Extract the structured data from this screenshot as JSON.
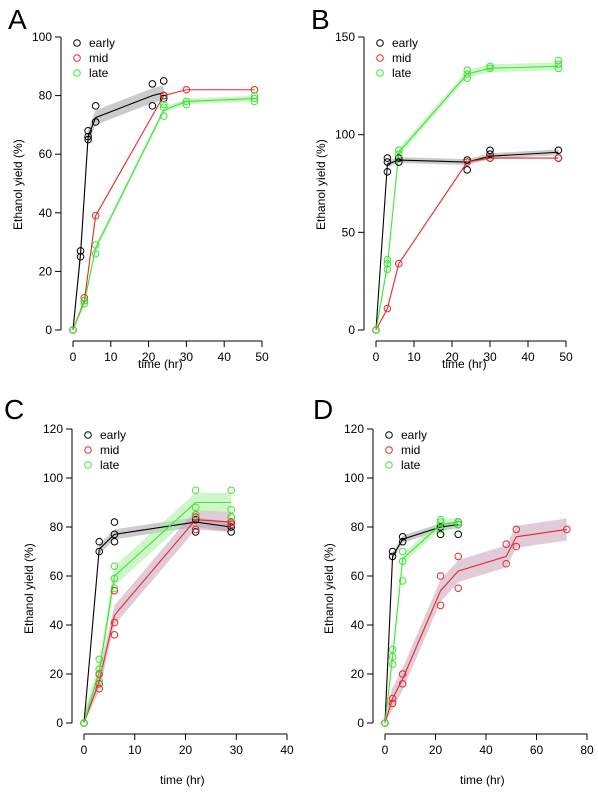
{
  "chart_data": [
    {
      "panel": "A",
      "type": "line",
      "xlabel": "time (hr)",
      "ylabel": "Ethanol yield (%)",
      "xlim": [
        0,
        50
      ],
      "ylim": [
        0,
        100
      ],
      "xticks": [
        0,
        10,
        20,
        30,
        40,
        50
      ],
      "yticks": [
        0,
        20,
        40,
        60,
        80,
        100
      ],
      "legend": {
        "position": "top-left",
        "entries": [
          "early",
          "mid",
          "late"
        ]
      },
      "series": [
        {
          "name": "early",
          "color": "#000000",
          "band_color": "#a0a0a0",
          "line": [
            [
              0,
              0
            ],
            [
              2,
              26
            ],
            [
              4,
              66
            ],
            [
              6,
              72.5
            ],
            [
              21,
              80
            ],
            [
              24,
              81
            ]
          ],
          "band": 2.5,
          "points": [
            [
              0,
              0
            ],
            [
              2,
              25
            ],
            [
              2,
              27
            ],
            [
              4,
              65
            ],
            [
              4,
              66
            ],
            [
              4,
              68
            ],
            [
              6,
              71
            ],
            [
              6,
              76.5
            ],
            [
              21,
              76.5
            ],
            [
              21,
              84
            ],
            [
              24,
              79
            ],
            [
              24,
              80
            ],
            [
              24,
              85
            ]
          ]
        },
        {
          "name": "mid",
          "color": "#e8272b",
          "band_color": "#e8a0a8",
          "line": [
            [
              0,
              0
            ],
            [
              3,
              10
            ],
            [
              6,
              39
            ],
            [
              24,
              80
            ],
            [
              30,
              82
            ],
            [
              48,
              82
            ]
          ],
          "band": 0,
          "points": [
            [
              0,
              0
            ],
            [
              3,
              10
            ],
            [
              3,
              11
            ],
            [
              6,
              39
            ],
            [
              24,
              80
            ],
            [
              30,
              82
            ],
            [
              48,
              82
            ]
          ]
        },
        {
          "name": "late",
          "color": "#3ee633",
          "band_color": "#a8eea0",
          "line": [
            [
              0,
              0
            ],
            [
              3,
              9.5
            ],
            [
              6,
              28
            ],
            [
              24,
              75
            ],
            [
              30,
              78
            ],
            [
              48,
              79
            ]
          ],
          "band": 1,
          "points": [
            [
              0,
              0
            ],
            [
              3,
              9
            ],
            [
              3,
              10
            ],
            [
              6,
              26
            ],
            [
              6,
              29
            ],
            [
              24,
              73
            ],
            [
              24,
              76
            ],
            [
              24,
              77
            ],
            [
              30,
              77
            ],
            [
              30,
              78
            ],
            [
              48,
              78
            ],
            [
              48,
              79
            ],
            [
              48,
              80
            ]
          ]
        }
      ]
    },
    {
      "panel": "B",
      "type": "line",
      "xlabel": "time (hr)",
      "ylabel": "Ethanol yield (%)",
      "xlim": [
        0,
        50
      ],
      "ylim": [
        0,
        150
      ],
      "xticks": [
        0,
        10,
        20,
        30,
        40,
        50
      ],
      "yticks": [
        0,
        50,
        100,
        150
      ],
      "legend": {
        "position": "top-left",
        "entries": [
          "early",
          "mid",
          "late"
        ]
      },
      "series": [
        {
          "name": "early",
          "color": "#000000",
          "band_color": "#a0a0a0",
          "line": [
            [
              0,
              0
            ],
            [
              3,
              85
            ],
            [
              6,
              87
            ],
            [
              24,
              86
            ],
            [
              30,
              89
            ],
            [
              48,
              91
            ]
          ],
          "band": 1.5,
          "points": [
            [
              0,
              0
            ],
            [
              3,
              81
            ],
            [
              3,
              86
            ],
            [
              3,
              88
            ],
            [
              6,
              86
            ],
            [
              6,
              88
            ],
            [
              24,
              82
            ],
            [
              24,
              87
            ],
            [
              30,
              88
            ],
            [
              30,
              90
            ],
            [
              30,
              92
            ],
            [
              48,
              92
            ],
            [
              48,
              88
            ]
          ]
        },
        {
          "name": "mid",
          "color": "#e8272b",
          "band_color": "#e8a0a8",
          "line": [
            [
              0,
              0
            ],
            [
              3,
              11
            ],
            [
              6,
              34
            ],
            [
              24,
              86
            ],
            [
              30,
              88
            ],
            [
              48,
              88
            ]
          ],
          "band": 0,
          "points": [
            [
              0,
              0
            ],
            [
              3,
              11
            ],
            [
              6,
              34
            ],
            [
              24,
              86
            ],
            [
              30,
              88
            ],
            [
              48,
              88
            ]
          ]
        },
        {
          "name": "late",
          "color": "#3ee633",
          "band_color": "#a8eea0",
          "line": [
            [
              0,
              0
            ],
            [
              3,
              33
            ],
            [
              6,
              91
            ],
            [
              24,
              131
            ],
            [
              30,
              134
            ],
            [
              48,
              135
            ]
          ],
          "band": 2,
          "points": [
            [
              0,
              0
            ],
            [
              3,
              31
            ],
            [
              3,
              34
            ],
            [
              3,
              36
            ],
            [
              6,
              90
            ],
            [
              6,
              92
            ],
            [
              24,
              129
            ],
            [
              24,
              131
            ],
            [
              24,
              133
            ],
            [
              30,
              134
            ],
            [
              30,
              135
            ],
            [
              48,
              134
            ],
            [
              48,
              136
            ],
            [
              48,
              138
            ]
          ]
        }
      ]
    },
    {
      "panel": "C",
      "type": "line",
      "xlabel": "time (hr)",
      "ylabel": "Ethanol yield (%)",
      "xlim": [
        0,
        40
      ],
      "ylim": [
        0,
        120
      ],
      "xticks": [
        0,
        10,
        20,
        30,
        40
      ],
      "yticks": [
        0,
        20,
        40,
        60,
        80,
        100,
        120
      ],
      "legend": {
        "position": "top-left",
        "entries": [
          "early",
          "mid",
          "late"
        ]
      },
      "series": [
        {
          "name": "early",
          "color": "#000000",
          "band_color": "#a0a0a0",
          "line": [
            [
              0,
              0
            ],
            [
              3,
              71
            ],
            [
              6,
              77
            ],
            [
              22,
              82
            ],
            [
              29,
              80
            ]
          ],
          "band": 2,
          "points": [
            [
              0,
              0
            ],
            [
              3,
              70
            ],
            [
              3,
              74
            ],
            [
              6,
              74
            ],
            [
              6,
              77
            ],
            [
              6,
              82
            ],
            [
              22,
              78
            ],
            [
              22,
              83
            ],
            [
              29,
              78
            ],
            [
              29,
              80
            ],
            [
              29,
              82
            ]
          ]
        },
        {
          "name": "mid",
          "color": "#e8272b",
          "band_color": "#c8a0b8",
          "line": [
            [
              0,
              0
            ],
            [
              3,
              17
            ],
            [
              6,
              44
            ],
            [
              22,
              83
            ],
            [
              29,
              82
            ]
          ],
          "band": 4,
          "points": [
            [
              0,
              0
            ],
            [
              3,
              14
            ],
            [
              3,
              16
            ],
            [
              3,
              20
            ],
            [
              6,
              36
            ],
            [
              6,
              41
            ],
            [
              6,
              54
            ],
            [
              22,
              79
            ],
            [
              22,
              84
            ],
            [
              22,
              85
            ],
            [
              29,
              81
            ],
            [
              29,
              82
            ],
            [
              29,
              84
            ]
          ]
        },
        {
          "name": "late",
          "color": "#3ee633",
          "band_color": "#a8eea0",
          "line": [
            [
              0,
              0
            ],
            [
              3,
              21
            ],
            [
              6,
              60
            ],
            [
              22,
              90
            ],
            [
              29,
              90
            ]
          ],
          "band": 4,
          "points": [
            [
              0,
              0
            ],
            [
              3,
              17
            ],
            [
              3,
              22
            ],
            [
              3,
              26
            ],
            [
              6,
              55
            ],
            [
              6,
              59
            ],
            [
              6,
              64
            ],
            [
              22,
              85
            ],
            [
              22,
              88
            ],
            [
              22,
              95
            ],
            [
              29,
              84
            ],
            [
              29,
              87
            ],
            [
              29,
              95
            ]
          ]
        }
      ]
    },
    {
      "panel": "D",
      "type": "line",
      "xlabel": "time (hr)",
      "ylabel": "Ethanol yield (%)",
      "xlim": [
        0,
        80
      ],
      "ylim": [
        0,
        120
      ],
      "xticks": [
        0,
        20,
        40,
        60,
        80
      ],
      "yticks": [
        0,
        20,
        40,
        60,
        80,
        100,
        120
      ],
      "legend": {
        "position": "top-left",
        "entries": [
          "early",
          "mid",
          "late"
        ]
      },
      "series": [
        {
          "name": "early",
          "color": "#000000",
          "band_color": "#a0a0a0",
          "line": [
            [
              0,
              0
            ],
            [
              3,
              68
            ],
            [
              7,
              75
            ],
            [
              22,
              80
            ],
            [
              29,
              81
            ]
          ],
          "band": 1.5,
          "points": [
            [
              0,
              0
            ],
            [
              3,
              68
            ],
            [
              3,
              70
            ],
            [
              7,
              74
            ],
            [
              7,
              76
            ],
            [
              22,
              77
            ],
            [
              22,
              80
            ],
            [
              29,
              77
            ],
            [
              29,
              81
            ],
            [
              29,
              82
            ]
          ]
        },
        {
          "name": "mid",
          "color": "#e8272b",
          "band_color": "#c8a0b8",
          "line": [
            [
              0,
              0
            ],
            [
              3,
              10
            ],
            [
              7,
              18
            ],
            [
              22,
              54
            ],
            [
              29,
              62
            ],
            [
              48,
              68
            ],
            [
              52,
              76
            ],
            [
              72,
              79
            ]
          ],
          "band": 4.5,
          "points": [
            [
              0,
              0
            ],
            [
              3,
              8
            ],
            [
              3,
              10
            ],
            [
              7,
              16
            ],
            [
              7,
              20
            ],
            [
              22,
              48
            ],
            [
              22,
              60
            ],
            [
              29,
              55
            ],
            [
              29,
              68
            ],
            [
              48,
              65
            ],
            [
              48,
              73
            ],
            [
              52,
              72
            ],
            [
              52,
              79
            ],
            [
              72,
              79
            ]
          ]
        },
        {
          "name": "late",
          "color": "#3ee633",
          "band_color": "#a8eea0",
          "line": [
            [
              0,
              0
            ],
            [
              3,
              27
            ],
            [
              7,
              67
            ],
            [
              22,
              81
            ],
            [
              29,
              82
            ]
          ],
          "band": 2,
          "points": [
            [
              0,
              0
            ],
            [
              3,
              24
            ],
            [
              3,
              27
            ],
            [
              3,
              30
            ],
            [
              7,
              58
            ],
            [
              7,
              66
            ],
            [
              7,
              70
            ],
            [
              22,
              79
            ],
            [
              22,
              82
            ],
            [
              22,
              83
            ],
            [
              29,
              81
            ],
            [
              29,
              82
            ]
          ]
        }
      ]
    }
  ]
}
